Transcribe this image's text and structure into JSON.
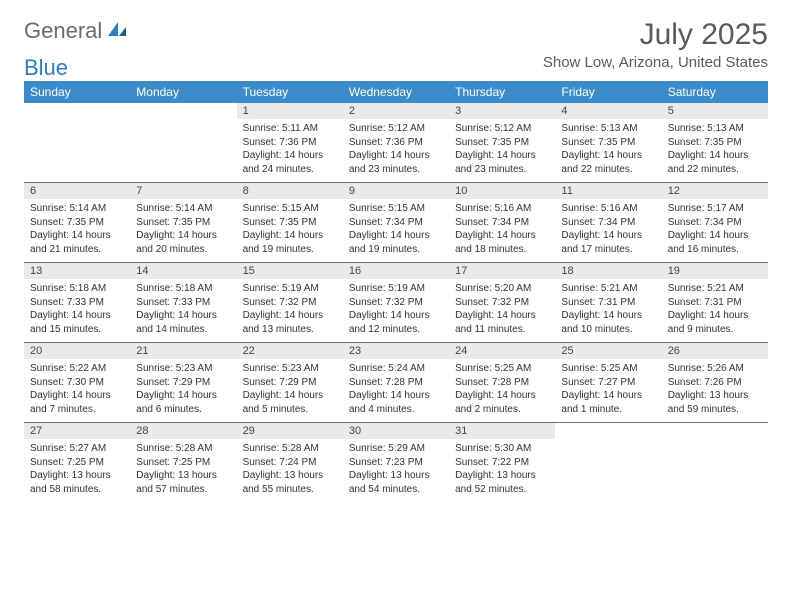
{
  "logo": {
    "part1": "General",
    "part2": "Blue"
  },
  "title": "July 2025",
  "location": "Show Low, Arizona, United States",
  "header_bg": "#3b8bc8",
  "daynum_bg": "#eaeaea",
  "weekdays": [
    "Sunday",
    "Monday",
    "Tuesday",
    "Wednesday",
    "Thursday",
    "Friday",
    "Saturday"
  ],
  "weeks": [
    {
      "nums": [
        "",
        "",
        "1",
        "2",
        "3",
        "4",
        "5"
      ],
      "cells": [
        {
          "empty": true
        },
        {
          "empty": true
        },
        {
          "sunrise": "Sunrise: 5:11 AM",
          "sunset": "Sunset: 7:36 PM",
          "daylight": "Daylight: 14 hours and 24 minutes."
        },
        {
          "sunrise": "Sunrise: 5:12 AM",
          "sunset": "Sunset: 7:36 PM",
          "daylight": "Daylight: 14 hours and 23 minutes."
        },
        {
          "sunrise": "Sunrise: 5:12 AM",
          "sunset": "Sunset: 7:35 PM",
          "daylight": "Daylight: 14 hours and 23 minutes."
        },
        {
          "sunrise": "Sunrise: 5:13 AM",
          "sunset": "Sunset: 7:35 PM",
          "daylight": "Daylight: 14 hours and 22 minutes."
        },
        {
          "sunrise": "Sunrise: 5:13 AM",
          "sunset": "Sunset: 7:35 PM",
          "daylight": "Daylight: 14 hours and 22 minutes."
        }
      ]
    },
    {
      "nums": [
        "6",
        "7",
        "8",
        "9",
        "10",
        "11",
        "12"
      ],
      "cells": [
        {
          "sunrise": "Sunrise: 5:14 AM",
          "sunset": "Sunset: 7:35 PM",
          "daylight": "Daylight: 14 hours and 21 minutes."
        },
        {
          "sunrise": "Sunrise: 5:14 AM",
          "sunset": "Sunset: 7:35 PM",
          "daylight": "Daylight: 14 hours and 20 minutes."
        },
        {
          "sunrise": "Sunrise: 5:15 AM",
          "sunset": "Sunset: 7:35 PM",
          "daylight": "Daylight: 14 hours and 19 minutes."
        },
        {
          "sunrise": "Sunrise: 5:15 AM",
          "sunset": "Sunset: 7:34 PM",
          "daylight": "Daylight: 14 hours and 19 minutes."
        },
        {
          "sunrise": "Sunrise: 5:16 AM",
          "sunset": "Sunset: 7:34 PM",
          "daylight": "Daylight: 14 hours and 18 minutes."
        },
        {
          "sunrise": "Sunrise: 5:16 AM",
          "sunset": "Sunset: 7:34 PM",
          "daylight": "Daylight: 14 hours and 17 minutes."
        },
        {
          "sunrise": "Sunrise: 5:17 AM",
          "sunset": "Sunset: 7:34 PM",
          "daylight": "Daylight: 14 hours and 16 minutes."
        }
      ]
    },
    {
      "nums": [
        "13",
        "14",
        "15",
        "16",
        "17",
        "18",
        "19"
      ],
      "cells": [
        {
          "sunrise": "Sunrise: 5:18 AM",
          "sunset": "Sunset: 7:33 PM",
          "daylight": "Daylight: 14 hours and 15 minutes."
        },
        {
          "sunrise": "Sunrise: 5:18 AM",
          "sunset": "Sunset: 7:33 PM",
          "daylight": "Daylight: 14 hours and 14 minutes."
        },
        {
          "sunrise": "Sunrise: 5:19 AM",
          "sunset": "Sunset: 7:32 PM",
          "daylight": "Daylight: 14 hours and 13 minutes."
        },
        {
          "sunrise": "Sunrise: 5:19 AM",
          "sunset": "Sunset: 7:32 PM",
          "daylight": "Daylight: 14 hours and 12 minutes."
        },
        {
          "sunrise": "Sunrise: 5:20 AM",
          "sunset": "Sunset: 7:32 PM",
          "daylight": "Daylight: 14 hours and 11 minutes."
        },
        {
          "sunrise": "Sunrise: 5:21 AM",
          "sunset": "Sunset: 7:31 PM",
          "daylight": "Daylight: 14 hours and 10 minutes."
        },
        {
          "sunrise": "Sunrise: 5:21 AM",
          "sunset": "Sunset: 7:31 PM",
          "daylight": "Daylight: 14 hours and 9 minutes."
        }
      ]
    },
    {
      "nums": [
        "20",
        "21",
        "22",
        "23",
        "24",
        "25",
        "26"
      ],
      "cells": [
        {
          "sunrise": "Sunrise: 5:22 AM",
          "sunset": "Sunset: 7:30 PM",
          "daylight": "Daylight: 14 hours and 7 minutes."
        },
        {
          "sunrise": "Sunrise: 5:23 AM",
          "sunset": "Sunset: 7:29 PM",
          "daylight": "Daylight: 14 hours and 6 minutes."
        },
        {
          "sunrise": "Sunrise: 5:23 AM",
          "sunset": "Sunset: 7:29 PM",
          "daylight": "Daylight: 14 hours and 5 minutes."
        },
        {
          "sunrise": "Sunrise: 5:24 AM",
          "sunset": "Sunset: 7:28 PM",
          "daylight": "Daylight: 14 hours and 4 minutes."
        },
        {
          "sunrise": "Sunrise: 5:25 AM",
          "sunset": "Sunset: 7:28 PM",
          "daylight": "Daylight: 14 hours and 2 minutes."
        },
        {
          "sunrise": "Sunrise: 5:25 AM",
          "sunset": "Sunset: 7:27 PM",
          "daylight": "Daylight: 14 hours and 1 minute."
        },
        {
          "sunrise": "Sunrise: 5:26 AM",
          "sunset": "Sunset: 7:26 PM",
          "daylight": "Daylight: 13 hours and 59 minutes."
        }
      ]
    },
    {
      "nums": [
        "27",
        "28",
        "29",
        "30",
        "31",
        "",
        ""
      ],
      "cells": [
        {
          "sunrise": "Sunrise: 5:27 AM",
          "sunset": "Sunset: 7:25 PM",
          "daylight": "Daylight: 13 hours and 58 minutes."
        },
        {
          "sunrise": "Sunrise: 5:28 AM",
          "sunset": "Sunset: 7:25 PM",
          "daylight": "Daylight: 13 hours and 57 minutes."
        },
        {
          "sunrise": "Sunrise: 5:28 AM",
          "sunset": "Sunset: 7:24 PM",
          "daylight": "Daylight: 13 hours and 55 minutes."
        },
        {
          "sunrise": "Sunrise: 5:29 AM",
          "sunset": "Sunset: 7:23 PM",
          "daylight": "Daylight: 13 hours and 54 minutes."
        },
        {
          "sunrise": "Sunrise: 5:30 AM",
          "sunset": "Sunset: 7:22 PM",
          "daylight": "Daylight: 13 hours and 52 minutes."
        },
        {
          "empty": true
        },
        {
          "empty": true
        }
      ]
    }
  ]
}
